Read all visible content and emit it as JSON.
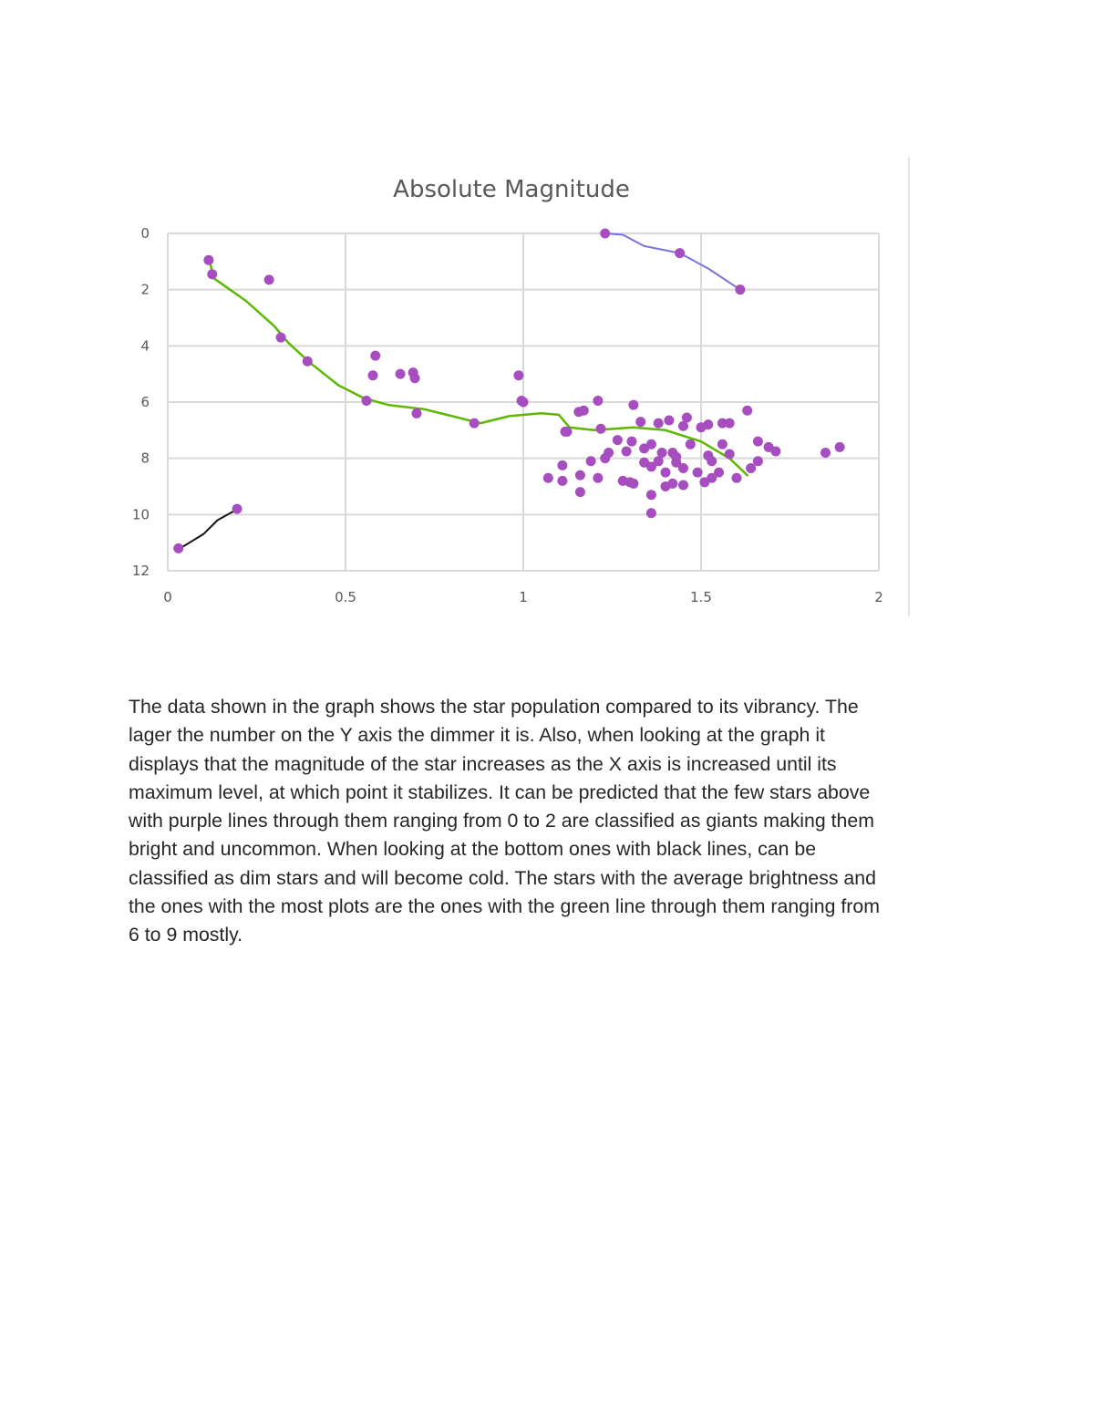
{
  "chart_data": {
    "type": "scatter",
    "title": "Absolute Magnitude",
    "xlabel": "",
    "ylabel": "",
    "xlim": [
      0,
      2
    ],
    "ylim": [
      0,
      12
    ],
    "y_inverted": true,
    "grid": true,
    "legend": null,
    "x_ticks": [
      "0",
      "0.5",
      "1",
      "1.5",
      "2"
    ],
    "y_ticks": [
      "0",
      "2",
      "4",
      "6",
      "8",
      "10",
      "12"
    ],
    "colors": {
      "points": "#a64dbf",
      "giants_line": "#7b73e0",
      "main_sequence_line": "#5cb800",
      "dwarfs_line": "#111111",
      "grid": "#d9d9d9",
      "text": "#595959"
    },
    "series": [
      {
        "name": "stars",
        "points": [
          [
            0.115,
            0.95
          ],
          [
            0.125,
            1.45
          ],
          [
            0.285,
            1.65
          ],
          [
            0.318,
            3.7
          ],
          [
            0.393,
            4.55
          ],
          [
            0.584,
            4.35
          ],
          [
            0.577,
            5.05
          ],
          [
            0.654,
            5.0
          ],
          [
            0.69,
            4.95
          ],
          [
            0.695,
            5.15
          ],
          [
            0.7,
            6.4
          ],
          [
            0.559,
            5.95
          ],
          [
            0.862,
            6.75
          ],
          [
            0.987,
            5.05
          ],
          [
            0.995,
            5.95
          ],
          [
            1.0,
            6.0
          ],
          [
            1.118,
            7.05
          ],
          [
            1.123,
            7.05
          ],
          [
            1.156,
            6.35
          ],
          [
            1.17,
            6.3
          ],
          [
            1.21,
            5.95
          ],
          [
            1.218,
            6.95
          ],
          [
            1.31,
            6.1
          ],
          [
            1.33,
            6.7
          ],
          [
            1.38,
            6.75
          ],
          [
            1.41,
            6.65
          ],
          [
            1.46,
            6.55
          ],
          [
            1.45,
            6.85
          ],
          [
            1.5,
            6.9
          ],
          [
            1.52,
            6.8
          ],
          [
            1.56,
            6.75
          ],
          [
            1.58,
            6.75
          ],
          [
            1.63,
            6.3
          ],
          [
            1.265,
            7.35
          ],
          [
            1.305,
            7.4
          ],
          [
            1.24,
            7.8
          ],
          [
            1.29,
            7.75
          ],
          [
            1.34,
            7.65
          ],
          [
            1.36,
            7.5
          ],
          [
            1.39,
            7.8
          ],
          [
            1.42,
            7.8
          ],
          [
            1.47,
            7.5
          ],
          [
            1.52,
            7.9
          ],
          [
            1.56,
            7.5
          ],
          [
            1.58,
            7.85
          ],
          [
            1.66,
            7.4
          ],
          [
            1.69,
            7.6
          ],
          [
            1.71,
            7.75
          ],
          [
            1.11,
            8.25
          ],
          [
            1.07,
            8.7
          ],
          [
            1.11,
            8.8
          ],
          [
            1.16,
            8.6
          ],
          [
            1.16,
            9.2
          ],
          [
            1.21,
            8.7
          ],
          [
            1.19,
            8.1
          ],
          [
            1.23,
            8.0
          ],
          [
            1.28,
            8.8
          ],
          [
            1.3,
            8.85
          ],
          [
            1.31,
            8.9
          ],
          [
            1.34,
            8.15
          ],
          [
            1.36,
            8.3
          ],
          [
            1.38,
            8.1
          ],
          [
            1.36,
            9.3
          ],
          [
            1.36,
            9.95
          ],
          [
            1.4,
            8.5
          ],
          [
            1.43,
            8.15
          ],
          [
            1.45,
            8.35
          ],
          [
            1.42,
            8.9
          ],
          [
            1.45,
            8.95
          ],
          [
            1.4,
            9.0
          ],
          [
            1.49,
            8.5
          ],
          [
            1.51,
            8.85
          ],
          [
            1.53,
            8.7
          ],
          [
            1.55,
            8.5
          ],
          [
            1.6,
            8.7
          ],
          [
            1.64,
            8.35
          ],
          [
            1.66,
            8.1
          ],
          [
            1.53,
            8.1
          ],
          [
            1.43,
            7.95
          ],
          [
            1.85,
            7.8
          ],
          [
            1.89,
            7.6
          ],
          [
            1.23,
            0.0
          ],
          [
            1.44,
            0.7
          ],
          [
            1.61,
            2.0
          ],
          [
            0.03,
            11.2
          ],
          [
            0.195,
            9.8
          ]
        ]
      }
    ],
    "annotations": [
      {
        "name": "giants_line",
        "color": "#7b73e0",
        "points": [
          [
            1.23,
            0.0
          ],
          [
            1.28,
            0.05
          ],
          [
            1.34,
            0.45
          ],
          [
            1.44,
            0.7
          ],
          [
            1.52,
            1.25
          ],
          [
            1.61,
            2.0
          ]
        ]
      },
      {
        "name": "main_sequence_line",
        "color": "#5cb800",
        "points": [
          [
            0.12,
            1.1
          ],
          [
            0.13,
            1.6
          ],
          [
            0.22,
            2.4
          ],
          [
            0.3,
            3.3
          ],
          [
            0.34,
            3.9
          ],
          [
            0.4,
            4.6
          ],
          [
            0.48,
            5.4
          ],
          [
            0.55,
            5.85
          ],
          [
            0.62,
            6.1
          ],
          [
            0.72,
            6.25
          ],
          [
            0.8,
            6.5
          ],
          [
            0.88,
            6.75
          ],
          [
            0.96,
            6.5
          ],
          [
            1.05,
            6.4
          ],
          [
            1.1,
            6.45
          ],
          [
            1.13,
            6.9
          ],
          [
            1.2,
            7.0
          ],
          [
            1.31,
            6.9
          ],
          [
            1.4,
            7.0
          ],
          [
            1.5,
            7.4
          ],
          [
            1.58,
            8.0
          ],
          [
            1.63,
            8.6
          ]
        ]
      },
      {
        "name": "dwarfs_line",
        "color": "#111111",
        "points": [
          [
            0.035,
            11.2
          ],
          [
            0.1,
            10.7
          ],
          [
            0.14,
            10.2
          ],
          [
            0.19,
            9.85
          ]
        ]
      }
    ]
  },
  "document": {
    "caption_lines": [
      "The data shown in the graph shows the star population compared to its vibrancy. The",
      "lager the number on the Y axis the dimmer it is. Also, when looking at the graph it",
      "displays that the magnitude of the star increases as the X axis is increased until its",
      "maximum level, at which point it stabilizes. It can be predicted that the few stars above",
      "with purple lines through them ranging from 0 to 2 are classified as giants making them",
      "bright and uncommon. When looking at the bottom ones with black lines, can be",
      "classified as dim stars and will become cold. The stars with the average brightness and",
      "the ones with the most plots are the ones with the green line through them ranging from",
      "6 to 9 mostly."
    ]
  }
}
